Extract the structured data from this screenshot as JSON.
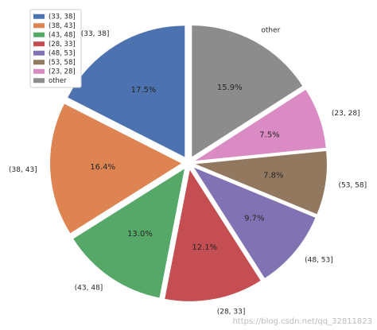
{
  "chart_data": {
    "type": "pie",
    "categories": [
      "(33, 38]",
      "(38, 43]",
      "(43, 48]",
      "(28, 33]",
      "(48, 53]",
      "(53, 58]",
      "(23, 28]",
      "other"
    ],
    "values": [
      17.5,
      16.4,
      13.0,
      12.1,
      9.7,
      7.8,
      7.5,
      15.9
    ],
    "value_labels": [
      "17.5%",
      "16.4%",
      "13.0%",
      "12.1%",
      "9.7%",
      "7.8%",
      "7.5%",
      "15.9%"
    ],
    "colors": [
      "#4c72b0",
      "#dd8452",
      "#55a868",
      "#c44e52",
      "#8172b3",
      "#937860",
      "#da8bc3",
      "#8c8c8c"
    ],
    "legend": "upper left"
  },
  "watermark": "https://blog.csdn.net/qq_32811823"
}
